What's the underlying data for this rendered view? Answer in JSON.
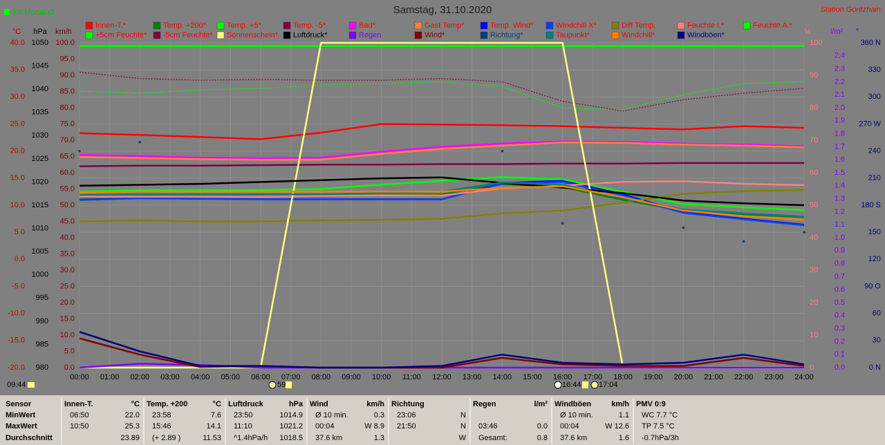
{
  "chart_data": {
    "type": "line",
    "title": "Samstag, 31.10.2020",
    "station": "Station Göritzhain",
    "monthly_avg": "8.6 Monat-Ø",
    "markers": [
      "09:44",
      "59",
      "16:44",
      "17:04"
    ],
    "x": [
      0,
      2,
      4,
      6,
      8,
      10,
      12,
      14,
      16,
      18,
      20,
      22,
      24
    ],
    "xlim": [
      0,
      24
    ],
    "xticks": [
      {
        "value": 0,
        "label": "00:00"
      },
      {
        "value": 1,
        "label": "01:00"
      },
      {
        "value": 2,
        "label": "02:00"
      },
      {
        "value": 3,
        "label": "03:00"
      },
      {
        "value": 4,
        "label": "04:00"
      },
      {
        "value": 5,
        "label": "05:00"
      },
      {
        "value": 6,
        "label": "06:00"
      },
      {
        "value": 7,
        "label": "07:00"
      },
      {
        "value": 8,
        "label": "08:00"
      },
      {
        "value": 9,
        "label": "09:00"
      },
      {
        "value": 10,
        "label": "10:00"
      },
      {
        "value": 11,
        "label": "11:00"
      },
      {
        "value": 12,
        "label": "12:00"
      },
      {
        "value": 13,
        "label": "13:00"
      },
      {
        "value": 14,
        "label": "14:00"
      },
      {
        "value": 15,
        "label": "15:00"
      },
      {
        "value": 16,
        "label": "16:00"
      },
      {
        "value": 17,
        "label": "17:00"
      },
      {
        "value": 18,
        "label": "18:00"
      },
      {
        "value": 19,
        "label": "19:00"
      },
      {
        "value": 20,
        "label": "20:00"
      },
      {
        "value": 21,
        "label": "21:00"
      },
      {
        "value": 22,
        "label": "22:00"
      },
      {
        "value": 23,
        "label": "23:00"
      },
      {
        "value": 24,
        "label": "24:00"
      }
    ],
    "grid": true,
    "axes": {
      "temp": {
        "label": "°C",
        "color": "#c00000",
        "lim": [
          -20,
          40
        ],
        "ticks": [
          {
            "value": -20,
            "label": "-20.0"
          },
          {
            "value": -15,
            "label": "-15.0"
          },
          {
            "value": -10,
            "label": "-10.0"
          },
          {
            "value": -5,
            "label": "-5.0"
          },
          {
            "value": 0,
            "label": "0.0"
          },
          {
            "value": 5,
            "label": "5.0"
          },
          {
            "value": 10,
            "label": "10.0"
          },
          {
            "value": 15,
            "label": "15.0"
          },
          {
            "value": 20,
            "label": "20.0"
          },
          {
            "value": 25,
            "label": "25.0"
          },
          {
            "value": 30,
            "label": "30.0"
          },
          {
            "value": 35,
            "label": "35.0"
          },
          {
            "value": 40,
            "label": "40.0"
          }
        ]
      },
      "hpa": {
        "label": "hPa",
        "color": "#000000",
        "lim": [
          980,
          1050
        ],
        "ticks": [
          980,
          985,
          990,
          995,
          1000,
          1005,
          1010,
          1015,
          1020,
          1025,
          1030,
          1035,
          1040,
          1045,
          1050
        ]
      },
      "kmh": {
        "label": "km/h",
        "color": "#800000",
        "lim": [
          0,
          100
        ],
        "ticks": [
          {
            "value": 0,
            "label": "0.0"
          },
          {
            "value": 5,
            "label": "5.0"
          },
          {
            "value": 10,
            "label": "10.0"
          },
          {
            "value": 15,
            "label": "15.0"
          },
          {
            "value": 20,
            "label": "20.0"
          },
          {
            "value": 25,
            "label": "25.0"
          },
          {
            "value": 30,
            "label": "30.0"
          },
          {
            "value": 35,
            "label": "35.0"
          },
          {
            "value": 40,
            "label": "40.0"
          },
          {
            "value": 45,
            "label": "45.0"
          },
          {
            "value": 50,
            "label": "50.0"
          },
          {
            "value": 55,
            "label": "55.0"
          },
          {
            "value": 60,
            "label": "60.0"
          },
          {
            "value": 65,
            "label": "65.0"
          },
          {
            "value": 70,
            "label": "70.0"
          },
          {
            "value": 75,
            "label": "75.0"
          },
          {
            "value": 80,
            "label": "80.0"
          },
          {
            "value": 85,
            "label": "85.0"
          },
          {
            "value": 90,
            "label": "90.0"
          },
          {
            "value": 95,
            "label": "95.0"
          },
          {
            "value": 100,
            "label": "100.0"
          }
        ]
      },
      "pct": {
        "label": "%",
        "color": "#ff8080",
        "lim": [
          0,
          100
        ],
        "ticks": [
          0,
          10,
          20,
          30,
          40,
          50,
          60,
          70,
          80,
          90,
          100
        ]
      },
      "rain": {
        "label": "l/m²",
        "color": "#8000ff",
        "lim": [
          0,
          2.5
        ],
        "ticks": [
          {
            "value": 0,
            "label": "0.0"
          },
          0.1,
          0.2,
          0.3,
          0.4,
          0.5,
          0.6,
          0.7,
          0.8,
          0.9,
          {
            "value": 1,
            "label": "1.0"
          },
          1.1,
          1.2,
          1.3,
          1.4,
          1.5,
          1.6,
          1.7,
          1.8,
          1.9,
          {
            "value": 2,
            "label": "2.0"
          },
          2.1,
          2.2,
          2.3,
          2.4
        ]
      },
      "dir": {
        "label": "°",
        "color": "#000080",
        "lim": [
          0,
          360
        ],
        "ticks": [
          {
            "value": 0,
            "label": "0 N"
          },
          30,
          60,
          {
            "value": 90,
            "label": "90 O"
          },
          120,
          150,
          {
            "value": 180,
            "label": "180 S"
          },
          210,
          240,
          {
            "value": 270,
            "label": "270 W"
          },
          300,
          330,
          {
            "value": 360,
            "label": "360 N"
          }
        ]
      }
    },
    "series": [
      {
        "name": "Innen-T.*",
        "color": "#ff0000",
        "text_color": "#ff0000",
        "axis": "temp",
        "values": [
          23.3,
          23.0,
          22.6,
          22.2,
          23.4,
          25.0,
          24.9,
          24.8,
          24.6,
          24.3,
          24.0,
          24.6,
          24.3
        ]
      },
      {
        "name": "Temp. +200*",
        "color": "#008000",
        "text_color": "#ff0000",
        "axis": "temp",
        "values": [
          11.4,
          11.6,
          11.6,
          11.6,
          11.6,
          11.8,
          12.0,
          13.9,
          13.4,
          11.0,
          9.0,
          8.3,
          7.8
        ]
      },
      {
        "name": "Temp. +5*",
        "color": "#00ff00",
        "text_color": "#ff0000",
        "axis": "temp",
        "values": [
          12.5,
          12.8,
          12.8,
          12.8,
          13.0,
          13.8,
          14.5,
          15.2,
          14.8,
          12.5,
          10.2,
          9.6,
          9.1
        ]
      },
      {
        "name": "Temp. -5*",
        "color": "#800040",
        "text_color": "#ff0000",
        "axis": "temp",
        "values": [
          17.2,
          17.3,
          17.3,
          17.4,
          17.5,
          17.5,
          17.6,
          17.6,
          17.7,
          17.7,
          17.8,
          17.8,
          17.8
        ]
      },
      {
        "name": "Bad*",
        "color": "#ff00ff",
        "text_color": "#ff0000",
        "axis": "temp",
        "values": [
          19.3,
          19.1,
          18.8,
          18.7,
          18.8,
          19.9,
          20.8,
          21.4,
          21.8,
          21.7,
          21.4,
          21.2,
          20.9
        ]
      },
      {
        "name": "Gast Temp*",
        "color": "#ff8040",
        "text_color": "#ff0000",
        "axis": "temp",
        "values": [
          18.9,
          18.7,
          18.5,
          18.4,
          18.4,
          19.5,
          20.4,
          21.0,
          21.6,
          21.5,
          21.2,
          21.0,
          20.7
        ]
      },
      {
        "name": "Temp. Wind*",
        "color": "#0000ff",
        "text_color": "#ff0000",
        "axis": "temp",
        "values": [
          11.0,
          11.3,
          11.2,
          11.1,
          11.1,
          11.1,
          11.1,
          14.1,
          14.5,
          12.0,
          8.7,
          7.5,
          6.4
        ]
      },
      {
        "name": "Windchill X*",
        "color": "#0040ff",
        "text_color": "#ff0000",
        "axis": "temp",
        "values": [
          11.0,
          11.3,
          11.2,
          11.1,
          11.1,
          11.1,
          11.1,
          14.0,
          14.3,
          11.8,
          8.6,
          7.4,
          6.3
        ]
      },
      {
        "name": "Diff Temp.",
        "color": "#808000",
        "text_color": "#ff0000",
        "axis": "temp",
        "values": [
          7.0,
          7.2,
          7.0,
          7.0,
          7.2,
          7.3,
          7.5,
          8.5,
          9.0,
          10.5,
          12.1,
          12.6,
          12.8
        ]
      },
      {
        "name": "Feuchte I.*",
        "color": "#ff8080",
        "text_color": "#ff0000",
        "axis": "pct",
        "values": [
          52.6,
          52.6,
          52.6,
          52.6,
          52.8,
          53.0,
          53.0,
          55.2,
          56.0,
          57.2,
          57.4,
          56.6,
          56.2
        ]
      },
      {
        "name": "Feuchte A.*",
        "color": "#00ff00",
        "text_color": "#ff0000",
        "axis": "pct",
        "values": [
          99,
          99,
          99,
          99,
          99,
          99,
          99,
          99,
          99,
          99,
          99,
          99,
          99
        ]
      },
      {
        "name": "+5cm Feuchte*",
        "color": "#00ff00",
        "text_color": "#ff0000",
        "axis": "pct",
        "style": "dotted",
        "values": [
          85.1,
          84.5,
          85.5,
          86.0,
          87.0,
          87.5,
          88.0,
          86.5,
          80.0,
          79.5,
          84.0,
          87.5,
          88.0
        ]
      },
      {
        "name": "-5cm Feuchte*",
        "color": "#800040",
        "text_color": "#ff0000",
        "axis": "pct",
        "style": "dotted",
        "values": [
          91.0,
          89.0,
          88.5,
          88.7,
          88.5,
          88.5,
          89.0,
          88.0,
          82.0,
          79.0,
          82.5,
          84.5,
          86.0
        ]
      },
      {
        "name": "Sonnenschein*",
        "color": "#ffff80",
        "text_color": "#ff0000",
        "axis": "pct",
        "values": [
          0,
          0,
          0,
          0,
          100,
          100,
          100,
          100,
          100,
          0,
          0,
          0,
          0
        ]
      },
      {
        "name": "Luftdruck*",
        "color": "#000000",
        "text_color": "#000000",
        "axis": "hpa",
        "values": [
          1019.2,
          1019.4,
          1019.6,
          1020.0,
          1020.4,
          1020.8,
          1021.0,
          1019.8,
          1018.8,
          1017.6,
          1016.0,
          1015.4,
          1015.0
        ]
      },
      {
        "name": "Regen",
        "color": "#8000ff",
        "text_color": "#8000ff",
        "axis": "rain",
        "values": [
          0,
          0.03,
          0.02,
          0,
          0,
          0,
          0,
          0,
          0,
          0,
          0,
          0,
          0
        ]
      },
      {
        "name": "Wind*",
        "color": "#800000",
        "text_color": "#800000",
        "axis": "kmh",
        "values": [
          9,
          4,
          0.2,
          0.5,
          0,
          0,
          0,
          3,
          1,
          0.5,
          0.5,
          3,
          0.5
        ]
      },
      {
        "name": "Richtung*",
        "color": "#004080",
        "text_color": "#004080",
        "axis": "dir",
        "style": "dots",
        "values": [
          240,
          250,
          null,
          null,
          null,
          null,
          null,
          240,
          160,
          null,
          155,
          140,
          150
        ]
      },
      {
        "name": "Taupunkt*",
        "color": "#008080",
        "text_color": "#ff0000",
        "axis": "temp",
        "values": [
          11.9,
          12.0,
          12.0,
          12.0,
          12.0,
          12.2,
          12.5,
          14.2,
          13.8,
          11.2,
          9.2,
          8.5,
          7.9
        ]
      },
      {
        "name": "Windchill*",
        "color": "#ff8000",
        "text_color": "#ff0000",
        "axis": "temp",
        "values": [
          12.3,
          12.5,
          12.5,
          12.5,
          12.5,
          12.5,
          12.5,
          13.2,
          13.5,
          11.5,
          9.0,
          8.0,
          7.3
        ]
      },
      {
        "name": "Windböen*",
        "color": "#000080",
        "text_color": "#000080",
        "axis": "kmh",
        "values": [
          11,
          5,
          0.5,
          0.5,
          0,
          0,
          0.5,
          4,
          1.5,
          1,
          1.5,
          4,
          1
        ]
      }
    ]
  },
  "summary": {
    "row_labels": [
      "Sensor",
      "MinWert",
      "MaxWert",
      "Durchschnitt"
    ],
    "columns": [
      {
        "header": "Innen-T.",
        "unit": "°C",
        "cells": [
          {
            "left": "06:50",
            "right": "22.0"
          },
          {
            "left": "10:50",
            "right": "25.3"
          },
          {
            "right": "23.89"
          }
        ]
      },
      {
        "header": "Temp. +200",
        "unit": "°C",
        "cells": [
          {
            "left": "23:58",
            "right": "7.6"
          },
          {
            "left": "15:46",
            "right": "14.1"
          },
          {
            "left": "(+ 2.89 )",
            "right": "11.53"
          }
        ]
      },
      {
        "header": "Luftdruck",
        "unit": "hPa",
        "cells": [
          {
            "left": "23:50",
            "right": "1014.9"
          },
          {
            "left": "11:10",
            "right": "1021.2"
          },
          {
            "left": "^1.4hPa/h",
            "right": "1018.5"
          }
        ]
      },
      {
        "header": "Wind",
        "unit": "km/h",
        "cells": [
          {
            "left": "Ø 10 min.",
            "right": "0.3"
          },
          {
            "left": "00:04",
            "right": "W 8.9"
          },
          {
            "left": "37.6 km",
            "right": "1.3"
          }
        ]
      },
      {
        "header": "Richtung",
        "cells": [
          {
            "left": "23:06",
            "right": "N"
          },
          {
            "left": "21:50",
            "right": "N"
          },
          {
            "right": "W"
          }
        ]
      },
      {
        "header": "Regen",
        "unit": "l/m²",
        "cells": [
          null,
          {
            "left": "03:46",
            "right": "0.0"
          },
          {
            "left": "Gesamt:",
            "right": "0.8"
          }
        ]
      },
      {
        "header": "Windböen",
        "unit": "km/h",
        "cells": [
          {
            "left": "Ø 10 min.",
            "right": "1.1"
          },
          {
            "left": "00:04",
            "right": "W 12.6"
          },
          {
            "left": "37.6 km",
            "right": "1.6"
          }
        ]
      },
      {
        "header": "PMV 0:9",
        "cells": [
          {
            "left": "WC 7.7 °C"
          },
          {
            "left": "TP 7.5 °C"
          },
          {
            "left": "-0.7hPa/3h"
          }
        ]
      }
    ]
  }
}
